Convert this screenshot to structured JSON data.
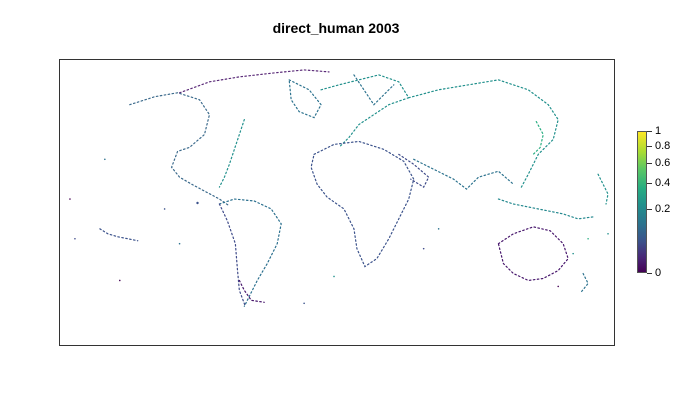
{
  "title": "direct_human 2003",
  "legend": {
    "ticks": [
      {
        "label": "1",
        "value": 1.0
      },
      {
        "label": "0.8",
        "value": 0.8
      },
      {
        "label": "0.6",
        "value": 0.6
      },
      {
        "label": "0.4",
        "value": 0.4
      },
      {
        "label": "0.2",
        "value": 0.2
      },
      {
        "label": "0",
        "value": 0.0
      }
    ],
    "colormap": "viridis",
    "low_color": "#440154",
    "high_color": "#fde725"
  }
}
